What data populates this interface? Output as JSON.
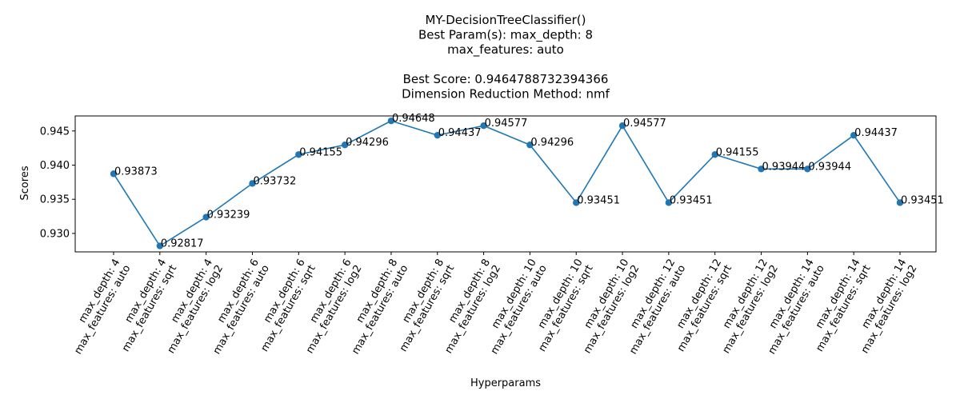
{
  "chart_data": {
    "type": "line",
    "title_lines": [
      "MY-DecisionTreeClassifier()",
      "Best Param(s): max_depth: 8",
      "max_features: auto",
      "",
      "Best Score: 0.9464788732394366",
      "Dimension Reduction Method: nmf"
    ],
    "xlabel": "Hyperparams",
    "ylabel": "Scores",
    "ylim": [
      0.9273,
      0.9472
    ],
    "yticks": [
      0.93,
      0.935,
      0.94,
      0.945
    ],
    "ytick_labels": [
      "0.930",
      "0.935",
      "0.940",
      "0.945"
    ],
    "grid": false,
    "line_color": "#1f77b4",
    "categories": [
      [
        "max_depth: 4",
        "max_features: auto"
      ],
      [
        "max_depth: 4",
        "max_features: sqrt"
      ],
      [
        "max_depth: 4",
        "max_features: log2"
      ],
      [
        "max_depth: 6",
        "max_features: auto"
      ],
      [
        "max_depth: 6",
        "max_features: sqrt"
      ],
      [
        "max_depth: 6",
        "max_features: log2"
      ],
      [
        "max_depth: 8",
        "max_features: auto"
      ],
      [
        "max_depth: 8",
        "max_features: sqrt"
      ],
      [
        "max_depth: 8",
        "max_features: log2"
      ],
      [
        "max_depth: 10",
        "max_features: auto"
      ],
      [
        "max_depth: 10",
        "max_features: sqrt"
      ],
      [
        "max_depth: 10",
        "max_features: log2"
      ],
      [
        "max_depth: 12",
        "max_features: auto"
      ],
      [
        "max_depth: 12",
        "max_features: sqrt"
      ],
      [
        "max_depth: 12",
        "max_features: log2"
      ],
      [
        "max_depth: 14",
        "max_features: auto"
      ],
      [
        "max_depth: 14",
        "max_features: sqrt"
      ],
      [
        "max_depth: 14",
        "max_features: log2"
      ]
    ],
    "values": [
      0.93873,
      0.92817,
      0.93239,
      0.93732,
      0.94155,
      0.94296,
      0.94648,
      0.94437,
      0.94577,
      0.94296,
      0.93451,
      0.94577,
      0.93451,
      0.94155,
      0.93944,
      0.93944,
      0.94437,
      0.93451
    ],
    "value_labels": [
      "0.93873",
      "0.92817",
      "0.93239",
      "0.93732",
      "0.94155",
      "0.94296",
      "0.94648",
      "0.94437",
      "0.94577",
      "0.94296",
      "0.93451",
      "0.94577",
      "0.93451",
      "0.94155",
      "0.93944",
      "0.93944",
      "0.94437",
      "0.93451"
    ]
  }
}
